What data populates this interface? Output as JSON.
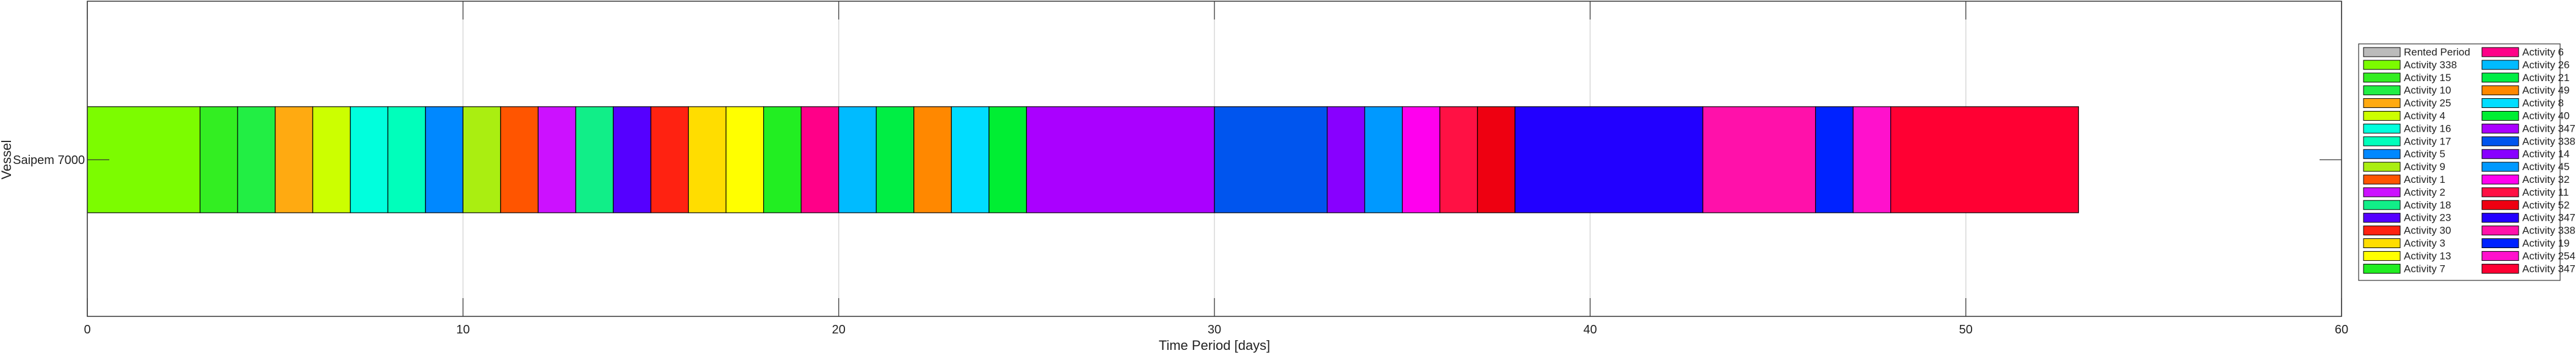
{
  "chart_data": {
    "type": "bar",
    "orientation": "horizontal-timeline",
    "xlabel": "Time Period [days]",
    "ylabel": "Vessel",
    "xlim": [
      0,
      60
    ],
    "xticks": [
      0,
      10,
      20,
      30,
      40,
      50,
      60
    ],
    "grid": "vertical",
    "legend_position": "right",
    "categories": [
      "Saipem 7000"
    ],
    "segments": [
      {
        "start": 0,
        "end": 3,
        "color": "#7cfc00"
      },
      {
        "start": 3,
        "end": 4,
        "color": "#33ee22"
      },
      {
        "start": 4,
        "end": 5,
        "color": "#22ee44"
      },
      {
        "start": 5,
        "end": 6,
        "color": "#ffaa11"
      },
      {
        "start": 6,
        "end": 7,
        "color": "#ccff00"
      },
      {
        "start": 7,
        "end": 8,
        "color": "#00ffdd"
      },
      {
        "start": 8,
        "end": 9,
        "color": "#00ffbb"
      },
      {
        "start": 9,
        "end": 10,
        "color": "#0088ff"
      },
      {
        "start": 10,
        "end": 11,
        "color": "#aaee11"
      },
      {
        "start": 11,
        "end": 12,
        "color": "#ff5500"
      },
      {
        "start": 12,
        "end": 13,
        "color": "#cc11ff"
      },
      {
        "start": 13,
        "end": 14,
        "color": "#11ee88"
      },
      {
        "start": 14,
        "end": 15,
        "color": "#5500ff"
      },
      {
        "start": 15,
        "end": 16,
        "color": "#ff2211"
      },
      {
        "start": 16,
        "end": 17,
        "color": "#ffdd00"
      },
      {
        "start": 17,
        "end": 18,
        "color": "#ffff00"
      },
      {
        "start": 18,
        "end": 19,
        "color": "#22ee22"
      },
      {
        "start": 19,
        "end": 20,
        "color": "#ff0088"
      },
      {
        "start": 20,
        "end": 21,
        "color": "#00bbff"
      },
      {
        "start": 21,
        "end": 22,
        "color": "#00ee44"
      },
      {
        "start": 22,
        "end": 23,
        "color": "#ff8800"
      },
      {
        "start": 23,
        "end": 24,
        "color": "#00ddff"
      },
      {
        "start": 24,
        "end": 25,
        "color": "#00ee33"
      },
      {
        "start": 25,
        "end": 30,
        "color": "#aa00ff"
      },
      {
        "start": 30,
        "end": 33,
        "color": "#0055ee"
      },
      {
        "start": 33,
        "end": 34,
        "color": "#8800ff"
      },
      {
        "start": 34,
        "end": 35,
        "color": "#0099ff"
      },
      {
        "start": 35,
        "end": 36,
        "color": "#ff00ee"
      },
      {
        "start": 36,
        "end": 37,
        "color": "#ff1144"
      },
      {
        "start": 37,
        "end": 38,
        "color": "#ee0011"
      },
      {
        "start": 38,
        "end": 43,
        "color": "#2200ff"
      },
      {
        "start": 43,
        "end": 46,
        "color": "#ff11aa"
      },
      {
        "start": 46,
        "end": 47,
        "color": "#0022ff"
      },
      {
        "start": 47,
        "end": 48,
        "color": "#ff11cc"
      },
      {
        "start": 48,
        "end": 53,
        "color": "#ff0033"
      }
    ],
    "legend": [
      {
        "label": "Rented Period",
        "color": "#bbbbbb"
      },
      {
        "label": "Activity 338",
        "color": "#7cfc00"
      },
      {
        "label": "Activity 15",
        "color": "#33ee22"
      },
      {
        "label": "Activity 10",
        "color": "#22ee44"
      },
      {
        "label": "Activity 25",
        "color": "#ffaa11"
      },
      {
        "label": "Activity 4",
        "color": "#ccff00"
      },
      {
        "label": "Activity 16",
        "color": "#00ffdd"
      },
      {
        "label": "Activity 17",
        "color": "#00ffbb"
      },
      {
        "label": "Activity 5",
        "color": "#0088ff"
      },
      {
        "label": "Activity 9",
        "color": "#aaee11"
      },
      {
        "label": "Activity 1",
        "color": "#ff5500"
      },
      {
        "label": "Activity 2",
        "color": "#cc11ff"
      },
      {
        "label": "Activity 18",
        "color": "#11ee88"
      },
      {
        "label": "Activity 23",
        "color": "#5500ff"
      },
      {
        "label": "Activity 30",
        "color": "#ff2211"
      },
      {
        "label": "Activity 3",
        "color": "#ffdd00"
      },
      {
        "label": "Activity 13",
        "color": "#ffff00"
      },
      {
        "label": "Activity 7",
        "color": "#22ee22"
      },
      {
        "label": "Activity 6",
        "color": "#ff0088"
      },
      {
        "label": "Activity 26",
        "color": "#00bbff"
      },
      {
        "label": "Activity 21",
        "color": "#00ee44"
      },
      {
        "label": "Activity 49",
        "color": "#ff8800"
      },
      {
        "label": "Activity 8",
        "color": "#00ddff"
      },
      {
        "label": "Activity 40",
        "color": "#00ee33"
      },
      {
        "label": "Activity 347",
        "color": "#aa00ff"
      },
      {
        "label": "Activity 338",
        "color": "#0055ee"
      },
      {
        "label": "Activity 14",
        "color": "#8800ff"
      },
      {
        "label": "Activity 45",
        "color": "#0099ff"
      },
      {
        "label": "Activity 32",
        "color": "#ff00ee"
      },
      {
        "label": "Activity 11",
        "color": "#ff1144"
      },
      {
        "label": "Activity 52",
        "color": "#ee0011"
      },
      {
        "label": "Activity 347",
        "color": "#2200ff"
      },
      {
        "label": "Activity 338",
        "color": "#ff11aa"
      },
      {
        "label": "Activity 19",
        "color": "#0022ff"
      },
      {
        "label": "Activity 254",
        "color": "#ff11cc"
      },
      {
        "label": "Activity 347",
        "color": "#ff0033"
      }
    ]
  }
}
